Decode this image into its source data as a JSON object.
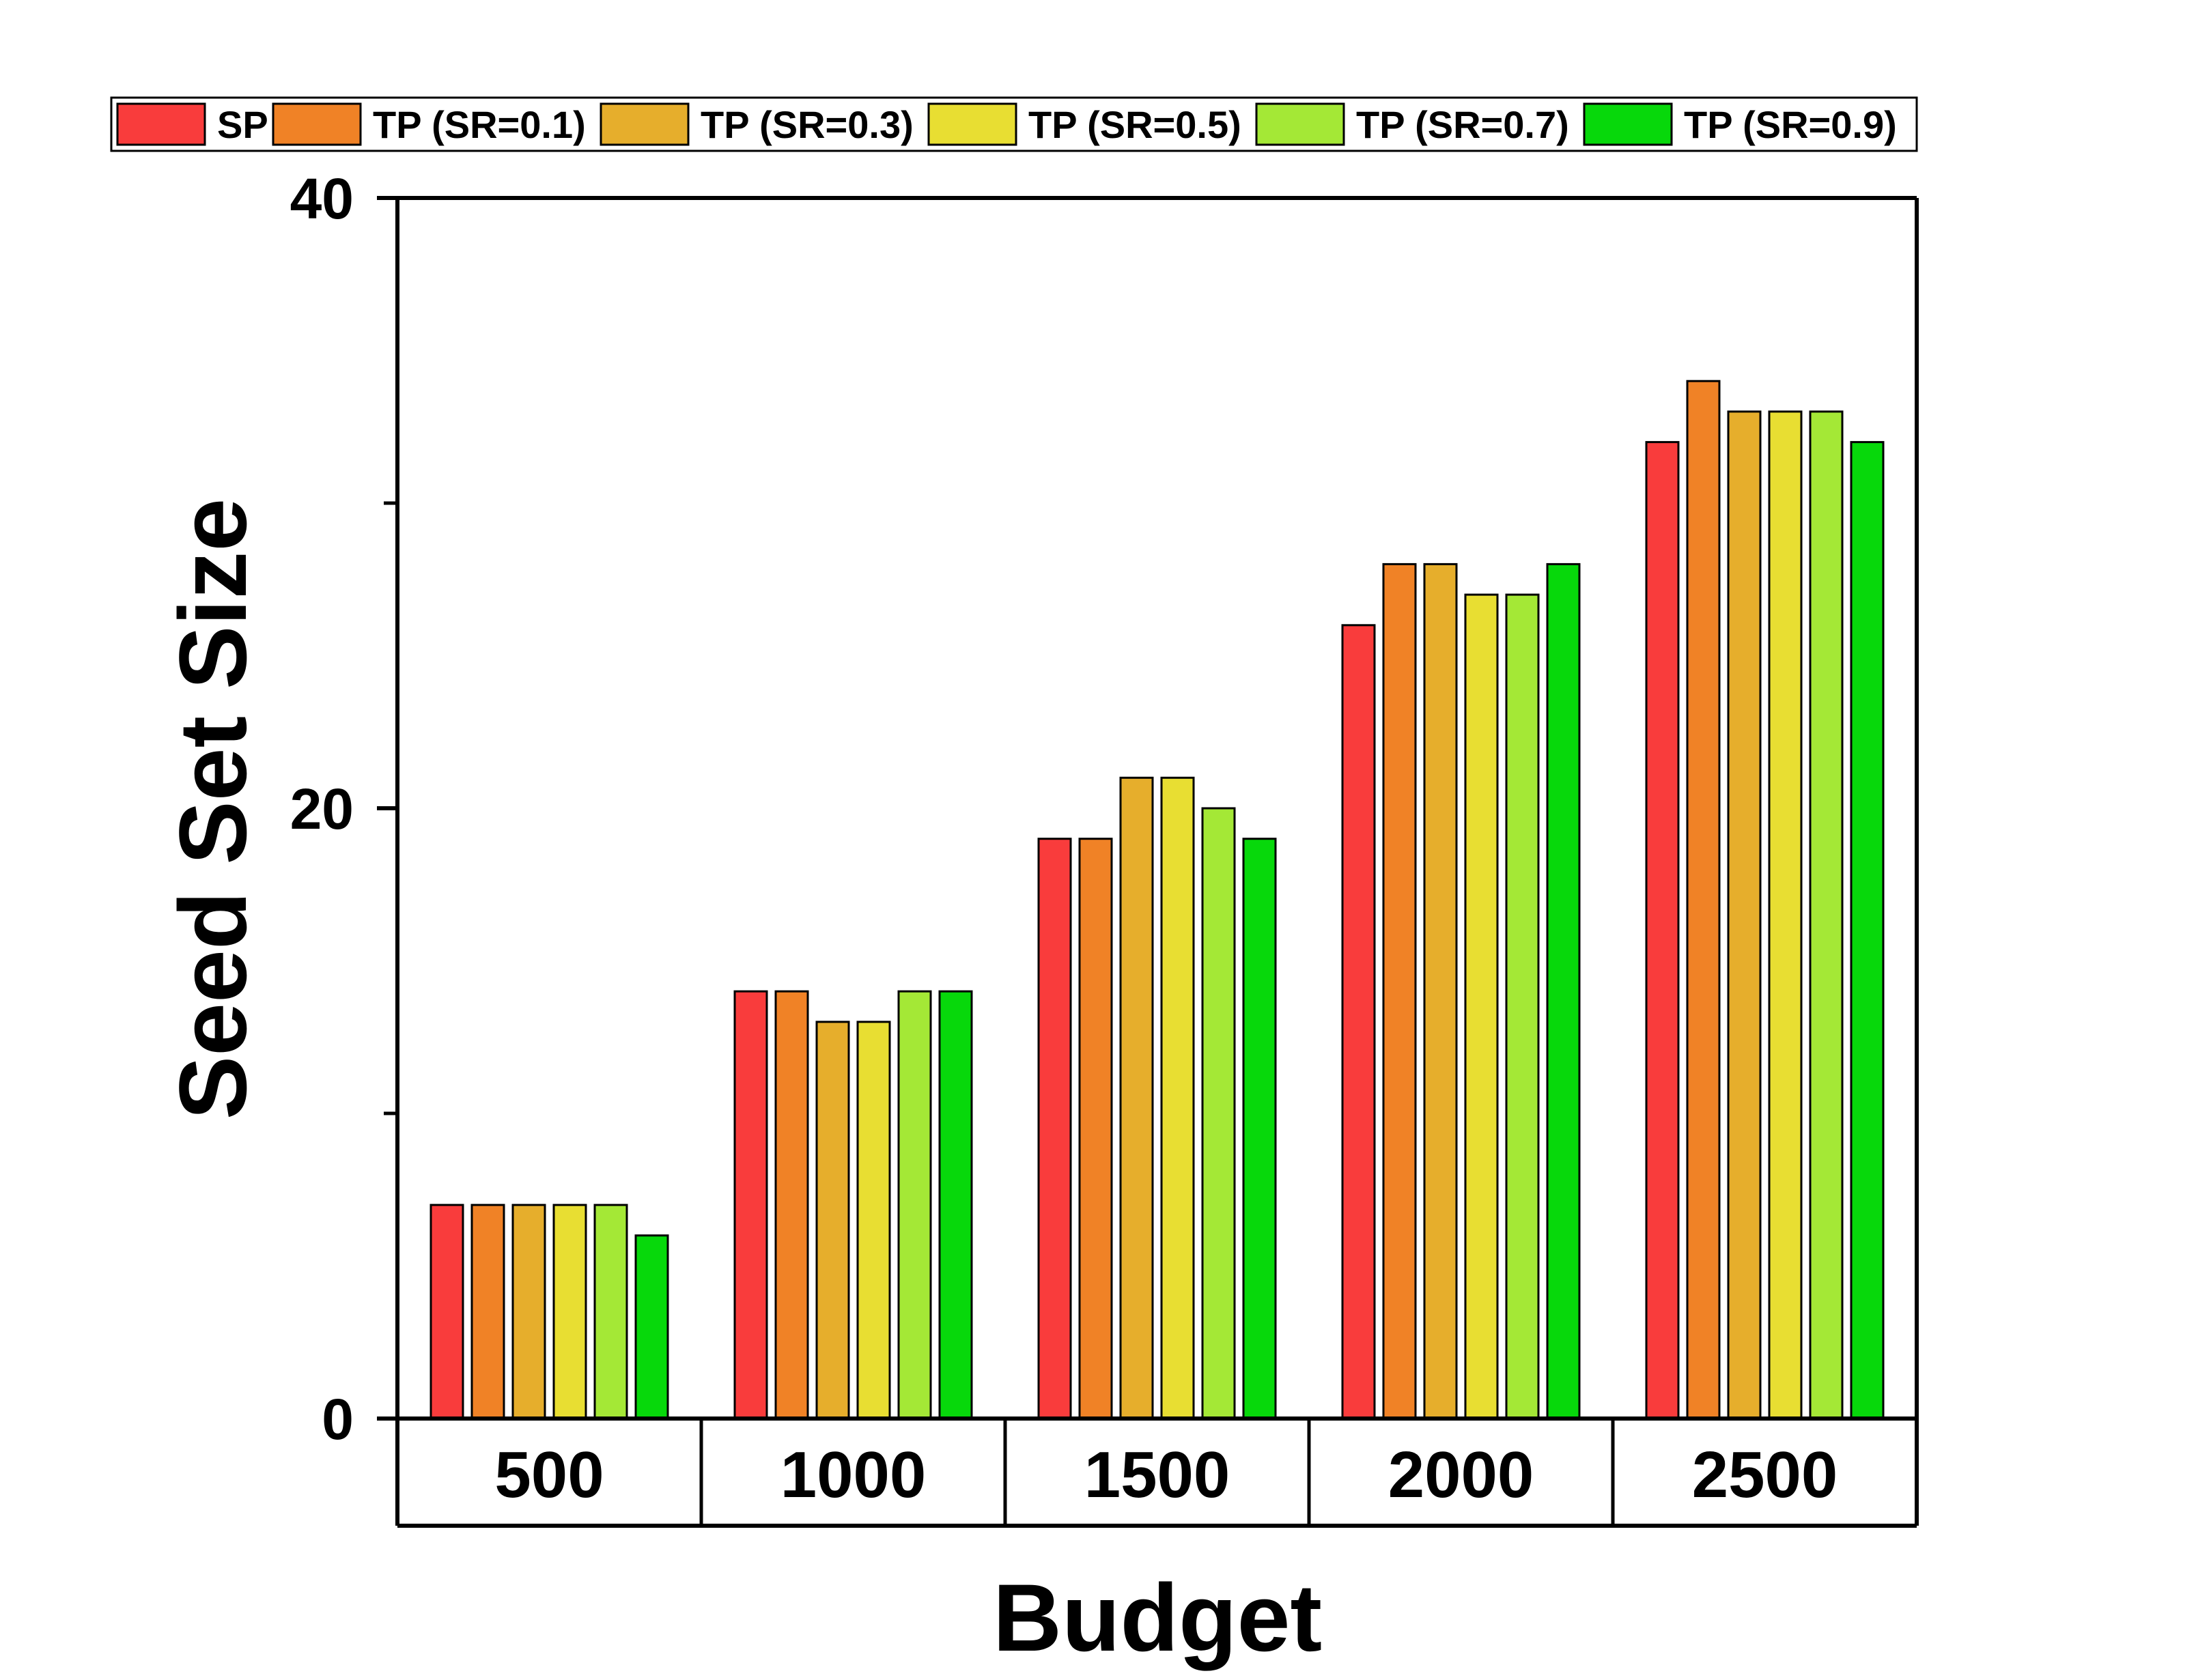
{
  "chart_data": {
    "type": "bar",
    "title": "",
    "xlabel": "Budget",
    "ylabel": "Seed Set Size",
    "ylim": [
      0,
      40
    ],
    "yticks": [
      0,
      20,
      40
    ],
    "yminor_ticks": [
      10,
      30
    ],
    "grid": false,
    "legend_position": "top",
    "categories": [
      "500",
      "1000",
      "1500",
      "2000",
      "2500"
    ],
    "series": [
      {
        "name": "SP",
        "color": "#f93c3c",
        "values": [
          7,
          14,
          19,
          26,
          32
        ]
      },
      {
        "name": "TP (SR=0.1)",
        "color": "#f08226",
        "values": [
          7,
          14,
          19,
          28,
          34
        ]
      },
      {
        "name": "TP (SR=0.3)",
        "color": "#e6ae2c",
        "values": [
          7,
          13,
          21,
          28,
          33
        ]
      },
      {
        "name": "TP (SR=0.5)",
        "color": "#e8de32",
        "values": [
          7,
          13,
          21,
          27,
          33
        ]
      },
      {
        "name": "TP (SR=0.7)",
        "color": "#a4e836",
        "values": [
          7,
          14,
          20,
          27,
          33
        ]
      },
      {
        "name": "TP (SR=0.9)",
        "color": "#07d80b",
        "values": [
          6,
          14,
          19,
          28,
          32
        ]
      }
    ]
  }
}
